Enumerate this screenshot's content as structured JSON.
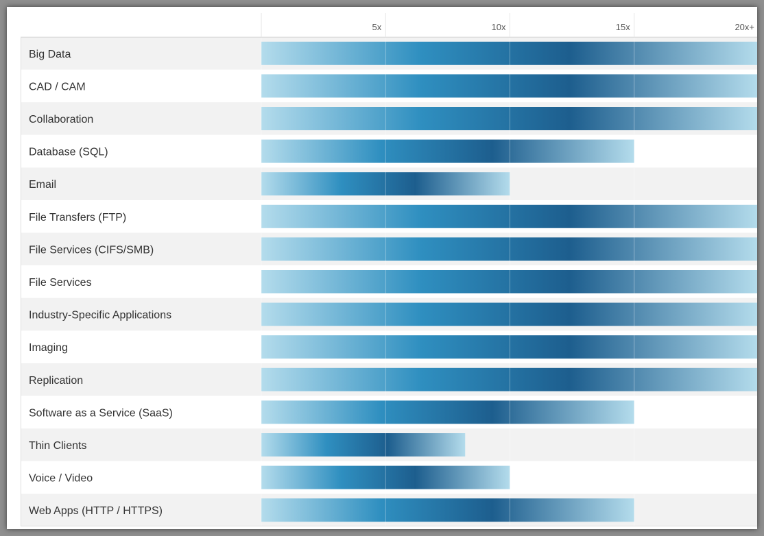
{
  "colors": {
    "band_alt": "#f2f2f2",
    "band_base": "#ffffff",
    "grid": "#e6e6e6",
    "bar_light": "#b4dcec",
    "bar_mid": "#2f8fc0",
    "bar_dark": "#1d5e8e"
  },
  "chart_data": {
    "type": "bar",
    "orientation": "horizontal",
    "title": "",
    "xlabel": "",
    "ylabel": "",
    "xlim": [
      0,
      20
    ],
    "ticks": [
      {
        "value": 5,
        "label": "5x"
      },
      {
        "value": 10,
        "label": "10x"
      },
      {
        "value": 15,
        "label": "15x"
      },
      {
        "value": 20,
        "label": "20x+"
      }
    ],
    "grid": true,
    "categories": [
      "Big Data",
      "CAD / CAM",
      "Collaboration",
      "Database (SQL)",
      "Email",
      "File Transfers (FTP)",
      "File Services (CIFS/SMB)",
      "File Services",
      "Industry-Specific Applications",
      "Imaging",
      "Replication",
      "Software as a Service (SaaS)",
      "Thin Clients",
      "Voice / Video",
      "Web Apps (HTTP / HTTPS)"
    ],
    "values": [
      20,
      20,
      20,
      15,
      10,
      20,
      20,
      20,
      20,
      20,
      20,
      15,
      8.2,
      10,
      15
    ]
  }
}
